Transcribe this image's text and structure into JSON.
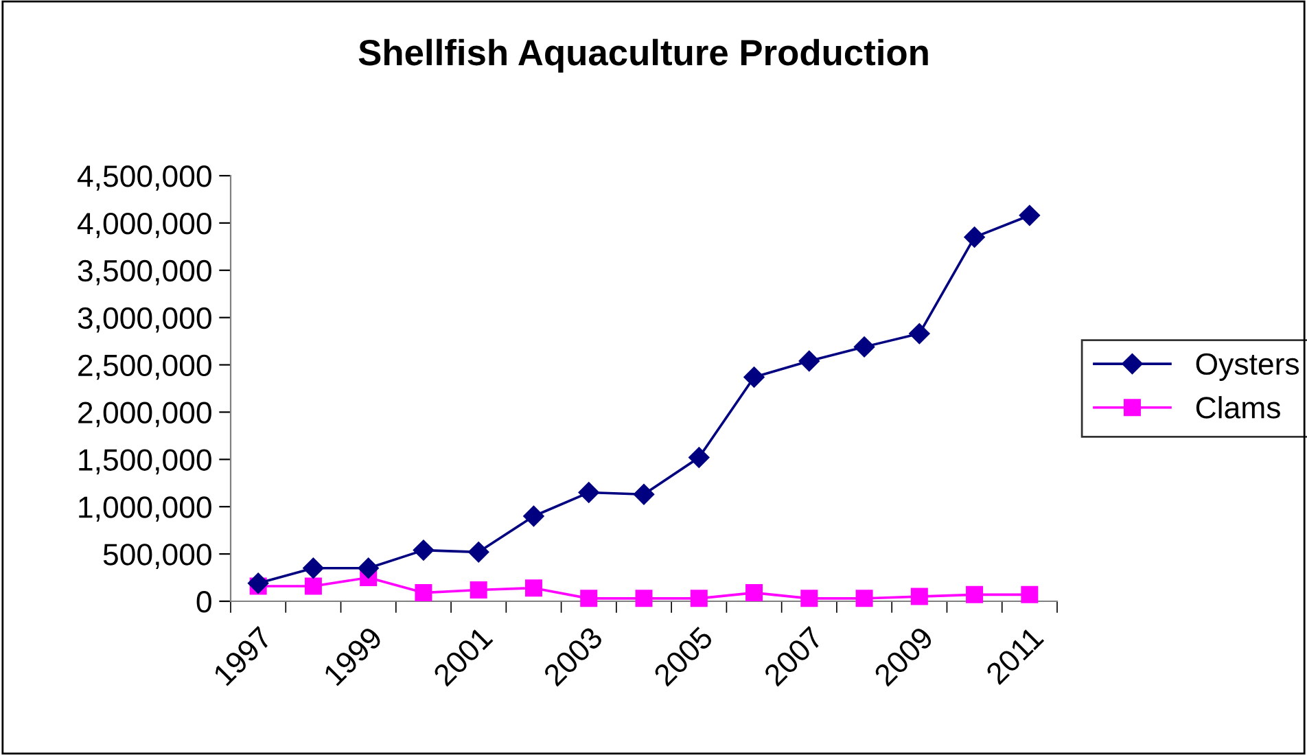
{
  "chart_data": {
    "type": "line",
    "title": "Shellfish Aquaculture Production",
    "categories": [
      "1997",
      null,
      "1999",
      null,
      "2001",
      null,
      "2003",
      null,
      "2005",
      null,
      "2007",
      null,
      "2009",
      null,
      "2011"
    ],
    "series": [
      {
        "name": "Oysters",
        "color": "#000080",
        "marker": "diamond",
        "values": [
          190000,
          350000,
          350000,
          540000,
          520000,
          900000,
          1150000,
          1130000,
          1520000,
          2370000,
          2540000,
          2690000,
          2830000,
          3850000,
          4080000
        ]
      },
      {
        "name": "Clams",
        "color": "#ff00ff",
        "marker": "square",
        "values": [
          160000,
          160000,
          250000,
          90000,
          120000,
          140000,
          30000,
          30000,
          30000,
          90000,
          30000,
          30000,
          50000,
          70000,
          70000
        ]
      }
    ],
    "ylim": [
      0,
      4500000
    ],
    "yticks": [
      0,
      {
        "value": 500000,
        "label": "500,000"
      },
      {
        "value": 1000000,
        "label": "1,000,000"
      },
      {
        "value": 1500000,
        "label": "1,500,000"
      },
      {
        "value": 2000000,
        "label": "2,000,000"
      },
      {
        "value": 2500000,
        "label": "2,500,000"
      },
      {
        "value": 3000000,
        "label": "3,000,000"
      },
      {
        "value": 3500000,
        "label": "3,500,000"
      },
      {
        "value": 4000000,
        "label": "4,000,000"
      },
      {
        "value": 4500000,
        "label": "4,500,000"
      }
    ],
    "grid": false,
    "legend": "right",
    "line_style": "solid"
  }
}
